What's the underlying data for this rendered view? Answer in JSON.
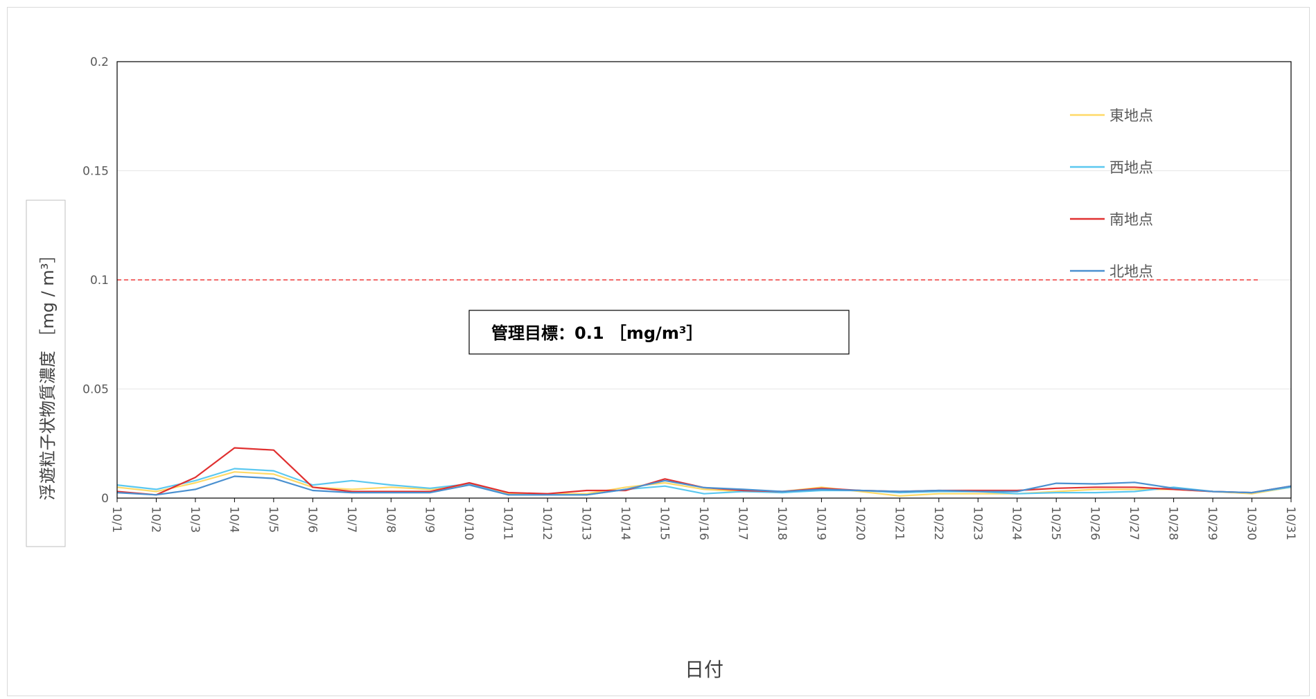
{
  "chart_data": {
    "type": "line",
    "xlabel": "日付",
    "ylabel": "浮遊粒子状物質濃度 ［mg / m³］",
    "ylim": [
      0,
      0.2
    ],
    "y_ticks": [
      "0",
      "0.05",
      "0.1",
      "0.15",
      "0.2"
    ],
    "grid": true,
    "legend_position": "top-right",
    "categories": [
      "10/1",
      "10/2",
      "10/3",
      "10/4",
      "10/5",
      "10/6",
      "10/7",
      "10/8",
      "10/9",
      "10/10",
      "10/11",
      "10/12",
      "10/13",
      "10/14",
      "10/15",
      "10/16",
      "10/17",
      "10/18",
      "10/19",
      "10/20",
      "10/21",
      "10/22",
      "10/23",
      "10/24",
      "10/25",
      "10/26",
      "10/27",
      "10/28",
      "10/29",
      "10/30",
      "10/31"
    ],
    "series": [
      {
        "name": "東地点",
        "color": "#ffd966",
        "values": [
          0.005,
          0.003,
          0.007,
          0.012,
          0.011,
          0.005,
          0.004,
          0.005,
          0.004,
          0.006,
          0.002,
          0.002,
          0.002,
          0.005,
          0.007,
          0.004,
          0.003,
          0.003,
          0.005,
          0.003,
          0.001,
          0.002,
          0.002,
          0.002,
          0.003,
          0.004,
          0.004,
          0.004,
          0.003,
          0.002,
          0.005
        ]
      },
      {
        "name": "西地点",
        "color": "#5bc8f0",
        "values": [
          0.006,
          0.004,
          0.008,
          0.0135,
          0.0125,
          0.006,
          0.008,
          0.006,
          0.0045,
          0.0065,
          0.0015,
          0.0015,
          0.0015,
          0.004,
          0.0055,
          0.002,
          0.003,
          0.0025,
          0.0035,
          0.0035,
          0.0025,
          0.003,
          0.003,
          0.002,
          0.0025,
          0.0025,
          0.003,
          0.005,
          0.003,
          0.0025,
          0.005
        ]
      },
      {
        "name": "南地点",
        "color": "#e03030",
        "values": [
          0.003,
          0.0015,
          0.0095,
          0.023,
          0.022,
          0.005,
          0.003,
          0.003,
          0.003,
          0.007,
          0.0025,
          0.002,
          0.0035,
          0.0035,
          0.0088,
          0.0048,
          0.0035,
          0.003,
          0.0045,
          0.0035,
          0.003,
          0.0035,
          0.0035,
          0.0035,
          0.0045,
          0.005,
          0.005,
          0.004,
          0.003,
          0.0025,
          0.0055
        ]
      },
      {
        "name": "北地点",
        "color": "#4a90d0",
        "values": [
          0.0025,
          0.0015,
          0.004,
          0.01,
          0.009,
          0.0035,
          0.0025,
          0.0025,
          0.0025,
          0.006,
          0.0015,
          0.0015,
          0.0015,
          0.004,
          0.008,
          0.0048,
          0.004,
          0.003,
          0.004,
          0.0035,
          0.003,
          0.0035,
          0.003,
          0.003,
          0.0068,
          0.0065,
          0.0072,
          0.0045,
          0.003,
          0.0025,
          0.0055
        ]
      }
    ],
    "target_line": {
      "value": 0.1,
      "color": "#f46a6a",
      "label": "管理目標：0.1 ［mg/m³］"
    }
  }
}
